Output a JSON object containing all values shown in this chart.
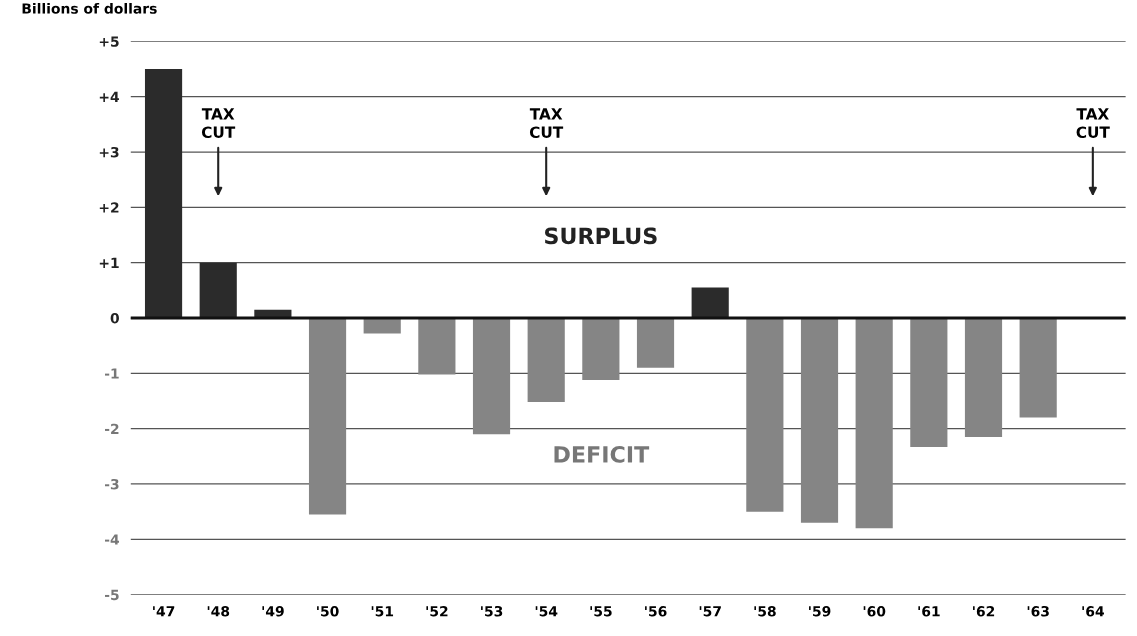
{
  "chart_data": {
    "type": "bar",
    "ylabel": "Billions of dollars",
    "categories": [
      "'47",
      "'48",
      "'49",
      "'50",
      "'51",
      "'52",
      "'53",
      "'54",
      "'55",
      "'56",
      "'57",
      "'58",
      "'59",
      "'60",
      "'61",
      "'62",
      "'63",
      "'64"
    ],
    "values": [
      4.5,
      1.0,
      0.15,
      -3.55,
      -0.28,
      -1.02,
      -2.1,
      -1.52,
      -1.12,
      -0.9,
      0.55,
      -3.5,
      -3.7,
      -3.8,
      -2.33,
      -2.15,
      -1.8,
      null
    ],
    "colors": [
      "#2b2b2b",
      "#2b2b2b",
      "#2b2b2b",
      "#858585",
      "#858585",
      "#858585",
      "#858585",
      "#858585",
      "#858585",
      "#858585",
      "#2b2b2b",
      "#858585",
      "#858585",
      "#858585",
      "#858585",
      "#858585",
      "#858585",
      "#858585"
    ],
    "ylim": [
      -5,
      5
    ],
    "yticks": [
      {
        "value": 5,
        "label": "+5"
      },
      {
        "value": 4,
        "label": "+4"
      },
      {
        "value": 3,
        "label": "+3"
      },
      {
        "value": 2,
        "label": "+2"
      },
      {
        "value": 1,
        "label": "+1"
      },
      0,
      {
        "value": -1,
        "label": "-1"
      },
      {
        "value": -2,
        "label": "-2"
      },
      {
        "value": -3,
        "label": "-3"
      },
      {
        "value": -4,
        "label": "-4"
      },
      {
        "value": -5,
        "label": "-5"
      }
    ],
    "grid": "y",
    "ref_lines": [
      {
        "axis": "y",
        "value": 0,
        "color": "#111111"
      }
    ],
    "annotations": [
      "TAX\nCUT",
      "TAX\nCUT",
      "TAX\nCUT",
      "SURPLUS",
      "DEFICIT"
    ]
  }
}
